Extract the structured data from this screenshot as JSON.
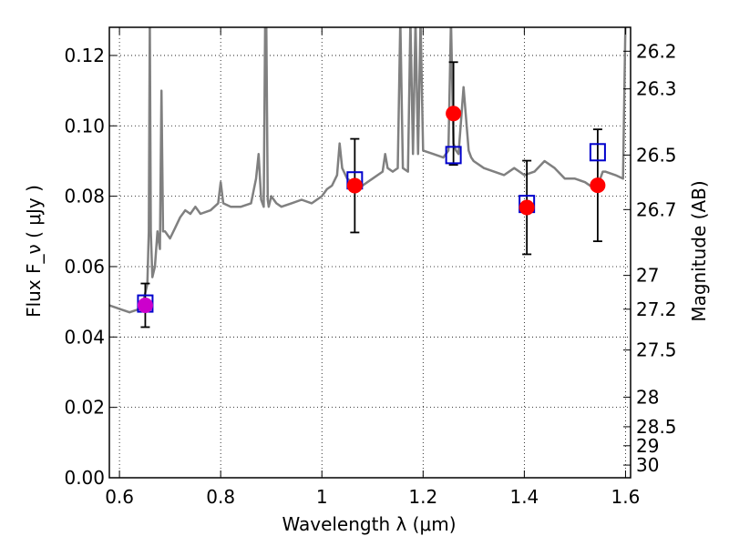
{
  "chart_data": {
    "type": "scatter",
    "title": "",
    "xlabel": "Wavelength λ (μm)",
    "ylabel": "Flux F_ν ( μJy )",
    "y2label": "Magnitude (AB)",
    "xlim": [
      0.58,
      1.61
    ],
    "ylim": [
      0.0,
      0.128
    ],
    "grid": true,
    "x_ticks": [
      {
        "value": 0.6,
        "label": "0.6"
      },
      {
        "value": 0.8,
        "label": "0.8"
      },
      {
        "value": 1.0,
        "label": "1"
      },
      {
        "value": 1.2,
        "label": "1.2"
      },
      {
        "value": 1.4,
        "label": "1.4"
      },
      {
        "value": 1.6,
        "label": "1.6"
      }
    ],
    "y_ticks": [
      {
        "value": 0.0,
        "label": "0.00"
      },
      {
        "value": 0.02,
        "label": "0.02"
      },
      {
        "value": 0.04,
        "label": "0.04"
      },
      {
        "value": 0.06,
        "label": "0.06"
      },
      {
        "value": 0.08,
        "label": "0.08"
      },
      {
        "value": 0.1,
        "label": "0.10"
      },
      {
        "value": 0.12,
        "label": "0.12"
      }
    ],
    "y2_ticks": [
      {
        "flux": 0.1212,
        "label": "26.2"
      },
      {
        "flux": 0.1105,
        "label": "26.3"
      },
      {
        "flux": 0.0917,
        "label": "26.5"
      },
      {
        "flux": 0.0762,
        "label": "26.7"
      },
      {
        "flux": 0.0575,
        "label": "27"
      },
      {
        "flux": 0.0479,
        "label": "27.2"
      },
      {
        "flux": 0.0363,
        "label": "27.5"
      },
      {
        "flux": 0.0229,
        "label": "28"
      },
      {
        "flux": 0.0145,
        "label": "28.5"
      },
      {
        "flux": 0.0091,
        "label": "29"
      },
      {
        "flux": 0.0036,
        "label": "30"
      }
    ],
    "series": [
      {
        "kind": "line",
        "color": "#808080",
        "x": [
          0.58,
          0.6,
          0.62,
          0.64,
          0.645,
          0.655,
          0.658,
          0.66,
          0.662,
          0.665,
          0.67,
          0.675,
          0.68,
          0.683,
          0.686,
          0.69,
          0.7,
          0.71,
          0.72,
          0.73,
          0.74,
          0.75,
          0.76,
          0.78,
          0.795,
          0.8,
          0.805,
          0.82,
          0.84,
          0.86,
          0.87,
          0.875,
          0.88,
          0.885,
          0.888,
          0.89,
          0.893,
          0.895,
          0.9,
          0.91,
          0.92,
          0.94,
          0.96,
          0.98,
          1.0,
          1.01,
          1.02,
          1.03,
          1.035,
          1.04,
          1.05,
          1.06,
          1.08,
          1.1,
          1.12,
          1.125,
          1.13,
          1.14,
          1.15,
          1.155,
          1.16,
          1.17,
          1.175,
          1.18,
          1.185,
          1.19,
          1.195,
          1.2,
          1.22,
          1.24,
          1.25,
          1.255,
          1.26,
          1.265,
          1.27,
          1.28,
          1.29,
          1.295,
          1.3,
          1.32,
          1.34,
          1.36,
          1.38,
          1.4,
          1.42,
          1.44,
          1.46,
          1.48,
          1.5,
          1.52,
          1.54,
          1.55,
          1.555,
          1.56,
          1.58,
          1.595,
          1.6,
          1.605,
          1.61
        ],
        "y": [
          0.049,
          0.048,
          0.047,
          0.048,
          0.049,
          0.055,
          0.07,
          0.13,
          0.07,
          0.057,
          0.06,
          0.07,
          0.065,
          0.11,
          0.07,
          0.07,
          0.068,
          0.071,
          0.074,
          0.076,
          0.075,
          0.077,
          0.075,
          0.076,
          0.078,
          0.084,
          0.078,
          0.077,
          0.077,
          0.078,
          0.085,
          0.092,
          0.079,
          0.077,
          0.13,
          0.13,
          0.079,
          0.077,
          0.08,
          0.078,
          0.077,
          0.078,
          0.079,
          0.078,
          0.08,
          0.082,
          0.083,
          0.086,
          0.095,
          0.088,
          0.085,
          0.084,
          0.083,
          0.085,
          0.087,
          0.092,
          0.088,
          0.087,
          0.088,
          0.13,
          0.088,
          0.087,
          0.13,
          0.092,
          0.13,
          0.092,
          0.13,
          0.093,
          0.092,
          0.091,
          0.093,
          0.13,
          0.095,
          0.093,
          0.092,
          0.111,
          0.093,
          0.091,
          0.09,
          0.088,
          0.087,
          0.086,
          0.088,
          0.086,
          0.087,
          0.09,
          0.088,
          0.085,
          0.085,
          0.084,
          0.082,
          0.085,
          0.087,
          0.087,
          0.086,
          0.085,
          0.13,
          0.13,
          0.13
        ]
      },
      {
        "kind": "model-points",
        "marker": "open-square",
        "color": "#0000cc",
        "x": [
          0.651,
          1.065,
          1.26,
          1.405,
          1.545
        ],
        "y": [
          0.0495,
          0.0845,
          0.0917,
          0.0778,
          0.0925
        ]
      },
      {
        "kind": "observed-points",
        "marker": "filled-circle",
        "color": "#ff0000",
        "x": [
          1.065,
          1.26,
          1.405,
          1.545
        ],
        "y": [
          0.083,
          0.1035,
          0.0768,
          0.0831
        ],
        "yerr": [
          0.0133,
          0.0146,
          0.0133,
          0.0159
        ]
      },
      {
        "kind": "observed-points",
        "marker": "filled-circle",
        "color": "#cc00cc",
        "x": [
          0.651
        ],
        "y": [
          0.049
        ],
        "yerr": [
          0.0062
        ]
      }
    ]
  }
}
